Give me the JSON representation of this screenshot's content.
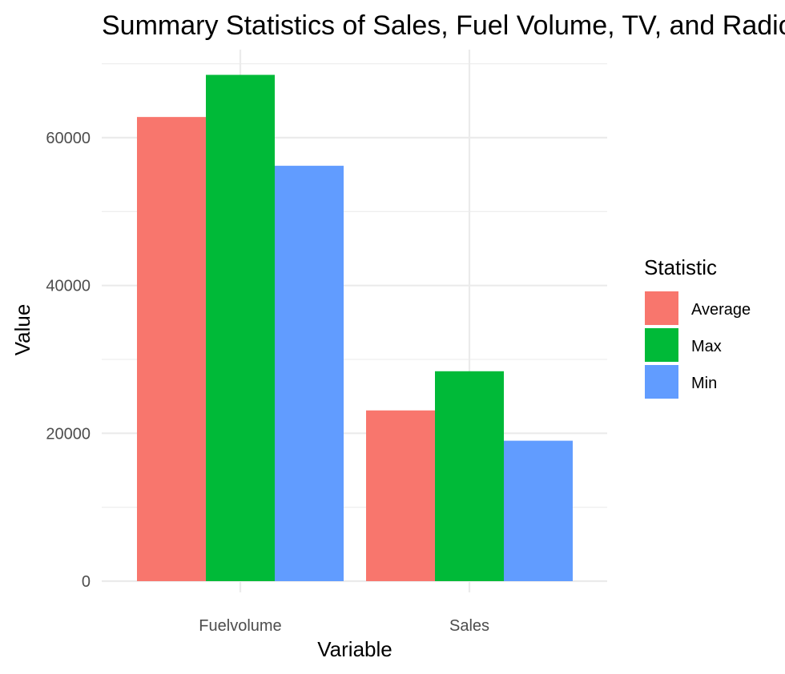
{
  "chart_data": {
    "type": "bar",
    "title": "Summary Statistics of Sales, Fuel Volume, TV, and Radio",
    "xlabel": "Variable",
    "ylabel": "Value",
    "categories": [
      "Fuelvolume",
      "Sales"
    ],
    "series": [
      {
        "name": "Average",
        "color": "#F8766D",
        "values": [
          62800,
          23100
        ]
      },
      {
        "name": "Max",
        "color": "#00BA38",
        "values": [
          68500,
          28400
        ]
      },
      {
        "name": "Min",
        "color": "#619CFF",
        "values": [
          56200,
          19000
        ]
      }
    ],
    "ylim": [
      0,
      72000
    ],
    "yticks": [
      0,
      20000,
      40000,
      60000
    ],
    "ytick_labels": [
      "0",
      "20000",
      "40000",
      "60000"
    ],
    "grid": true,
    "legend": {
      "title": "Statistic",
      "position": "right"
    }
  }
}
